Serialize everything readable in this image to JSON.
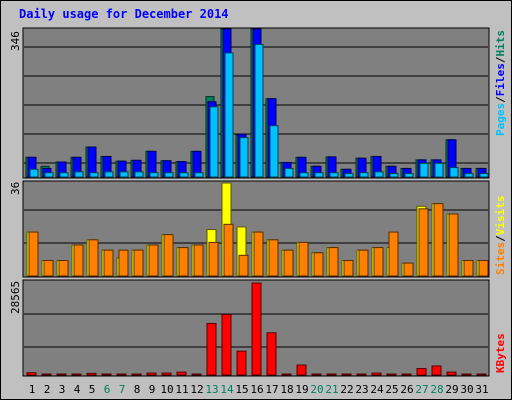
{
  "title": "Daily usage for December 2014",
  "colors": {
    "hits": "#00805c",
    "files": "#0000ff",
    "pages": "#00c0ff",
    "visits": "#ffff00",
    "sites": "#ff8000",
    "kbytes": "#ff0000",
    "weekend_day": "#00805c",
    "weekday_day": "#000000"
  },
  "legend_top": [
    "Pages",
    "Files",
    "Hits"
  ],
  "legend_mid": [
    "Sites",
    "Visits"
  ],
  "legend_bot": [
    "KBytes"
  ],
  "chart_data": [
    {
      "type": "bar",
      "title": "Daily usage for December 2014",
      "ymax_label": "346",
      "ylim": [
        0,
        346
      ],
      "categories": [
        "1",
        "2",
        "3",
        "4",
        "5",
        "6",
        "7",
        "8",
        "9",
        "10",
        "11",
        "12",
        "13",
        "14",
        "15",
        "16",
        "17",
        "18",
        "19",
        "20",
        "21",
        "22",
        "23",
        "24",
        "25",
        "26",
        "27",
        "28",
        "29",
        "30",
        "31"
      ],
      "series": [
        {
          "name": "Hits",
          "values": [
            46,
            25,
            35,
            46,
            70,
            48,
            37,
            39,
            60,
            38,
            36,
            60,
            188,
            346,
            98,
            346,
            183,
            34,
            46,
            25,
            47,
            18,
            44,
            48,
            25,
            20,
            40,
            40,
            87,
            20,
            20
          ]
        },
        {
          "name": "Files",
          "values": [
            46,
            20,
            35,
            46,
            70,
            48,
            37,
            39,
            60,
            38,
            36,
            60,
            176,
            346,
            100,
            346,
            183,
            34,
            46,
            25,
            47,
            18,
            44,
            48,
            25,
            20,
            40,
            40,
            87,
            20,
            20
          ]
        },
        {
          "name": "Pages",
          "values": [
            18,
            10,
            10,
            12,
            10,
            12,
            12,
            12,
            10,
            10,
            10,
            10,
            164,
            290,
            92,
            310,
            120,
            20,
            10,
            10,
            10,
            8,
            10,
            12,
            8,
            8,
            32,
            32,
            22,
            8,
            8
          ]
        }
      ]
    },
    {
      "type": "bar",
      "ymax_label": "36",
      "ylim": [
        0,
        36
      ],
      "categories": [
        "1",
        "2",
        "3",
        "4",
        "5",
        "6",
        "7",
        "8",
        "9",
        "10",
        "11",
        "12",
        "13",
        "14",
        "15",
        "16",
        "17",
        "18",
        "19",
        "20",
        "21",
        "22",
        "23",
        "24",
        "25",
        "26",
        "27",
        "28",
        "29",
        "30",
        "31"
      ],
      "series": [
        {
          "name": "Visits",
          "values": [
            17,
            6,
            6,
            12,
            14,
            10,
            7,
            10,
            12,
            16,
            11,
            12,
            18,
            36,
            19,
            17,
            14,
            10,
            13,
            9,
            11,
            6,
            10,
            11,
            11,
            5,
            27,
            28,
            24,
            6,
            6
          ]
        },
        {
          "name": "Sites",
          "values": [
            17,
            6,
            6,
            12,
            14,
            10,
            10,
            10,
            12,
            16,
            11,
            12,
            13,
            20,
            8,
            17,
            14,
            10,
            13,
            9,
            11,
            6,
            10,
            11,
            17,
            5,
            26,
            28,
            24,
            6,
            6
          ]
        }
      ]
    },
    {
      "type": "bar",
      "ymax_label": "28565",
      "ylim": [
        0,
        28565
      ],
      "categories": [
        "1",
        "2",
        "3",
        "4",
        "5",
        "6",
        "7",
        "8",
        "9",
        "10",
        "11",
        "12",
        "13",
        "14",
        "15",
        "16",
        "17",
        "18",
        "19",
        "20",
        "21",
        "22",
        "23",
        "24",
        "25",
        "26",
        "27",
        "28",
        "29",
        "30",
        "31"
      ],
      "series": [
        {
          "name": "KBytes",
          "values": [
            700,
            300,
            300,
            300,
            500,
            300,
            300,
            300,
            600,
            600,
            900,
            300,
            16000,
            18800,
            7400,
            28565,
            13100,
            300,
            3100,
            300,
            300,
            300,
            300,
            600,
            300,
            300,
            2000,
            2800,
            900,
            300,
            300
          ]
        }
      ]
    }
  ]
}
